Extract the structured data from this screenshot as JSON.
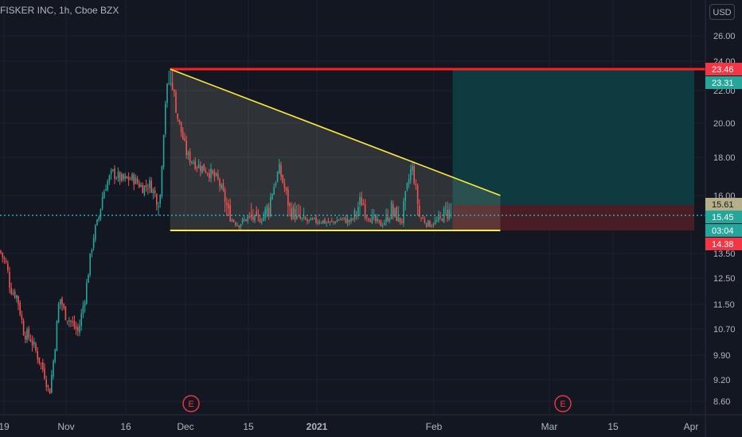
{
  "header": {
    "title": "FISKER INC, 1h, Cboe BZX",
    "currency_label": "USD"
  },
  "colors": {
    "background": "#131722",
    "grid": "#1e2230",
    "axis_text": "#b2b5be",
    "up": "#26a69a",
    "down": "#ef5350",
    "trend": "#ffeb3b",
    "resistance": "#ff1f1f",
    "price_line": "#26c6da",
    "target_zone": "#0d3b3f",
    "stop_zone": "#4a1d24"
  },
  "chart_data": {
    "type": "candlestick",
    "x_axis": {
      "tick_labels": [
        "19",
        "Nov",
        "16",
        "Dec",
        "15",
        "2021",
        "Feb",
        "Mar",
        "15",
        "Apr"
      ],
      "bold_labels": [
        "2021"
      ]
    },
    "y_axis": {
      "tick_labels": [
        "26.00",
        "24.00",
        "22.00",
        "20.00",
        "18.00",
        "16.00",
        "13.50",
        "12.50",
        "11.50",
        "10.70",
        "9.90",
        "9.20",
        "8.60"
      ],
      "price_labels": [
        {
          "text": "23.46",
          "style": "resistance"
        },
        {
          "text": "23.31",
          "style": "target"
        },
        {
          "text": "15.61",
          "style": "neutral"
        },
        {
          "text": "15.45",
          "style": "current"
        },
        {
          "text": "03:04",
          "style": "countdown"
        },
        {
          "text": "14.38",
          "style": "stop"
        }
      ]
    },
    "events": [
      "E",
      "E"
    ],
    "price_series": [
      [
        0.0,
        13.6
      ],
      [
        0.02,
        13.0
      ],
      [
        0.03,
        12.1
      ],
      [
        0.05,
        11.8
      ],
      [
        0.07,
        10.6
      ],
      [
        0.09,
        10.4
      ],
      [
        0.11,
        9.9
      ],
      [
        0.13,
        9.4
      ],
      [
        0.145,
        8.8
      ],
      [
        0.16,
        10.0
      ],
      [
        0.175,
        11.8
      ],
      [
        0.19,
        11.2
      ],
      [
        0.21,
        10.9
      ],
      [
        0.23,
        10.6
      ],
      [
        0.25,
        11.8
      ],
      [
        0.27,
        13.8
      ],
      [
        0.29,
        15.3
      ],
      [
        0.31,
        16.5
      ],
      [
        0.33,
        17.2
      ],
      [
        0.36,
        16.8
      ],
      [
        0.39,
        16.9
      ],
      [
        0.42,
        16.4
      ],
      [
        0.44,
        16.6
      ],
      [
        0.46,
        15.9
      ],
      [
        0.47,
        15.8
      ],
      [
        0.49,
        22.7
      ],
      [
        0.5,
        23.4
      ],
      [
        0.52,
        20.5
      ],
      [
        0.55,
        18.1
      ],
      [
        0.58,
        17.6
      ],
      [
        0.61,
        17.3
      ],
      [
        0.64,
        16.8
      ],
      [
        0.67,
        15.4
      ],
      [
        0.7,
        14.8
      ],
      [
        0.73,
        15.3
      ],
      [
        0.76,
        15.1
      ],
      [
        0.79,
        15.6
      ],
      [
        0.82,
        17.4
      ],
      [
        0.85,
        15.5
      ],
      [
        0.88,
        15.2
      ],
      [
        0.91,
        15.0
      ],
      [
        0.94,
        15.1
      ],
      [
        0.97,
        14.9
      ],
      [
        1.0,
        15.2
      ],
      [
        1.03,
        15.0
      ],
      [
        1.06,
        15.8
      ],
      [
        1.09,
        15.2
      ],
      [
        1.12,
        14.8
      ],
      [
        1.15,
        15.5
      ],
      [
        1.18,
        15.0
      ],
      [
        1.21,
        17.6
      ],
      [
        1.23,
        15.4
      ],
      [
        1.26,
        14.8
      ],
      [
        1.29,
        15.1
      ],
      [
        1.31,
        15.45
      ]
    ],
    "trend_lines": [
      {
        "name": "descending",
        "from": [
          0.5,
          23.46
        ],
        "to": [
          1.47,
          16.0
        ]
      },
      {
        "name": "support",
        "from": [
          0.5,
          14.38
        ],
        "to": [
          1.47,
          14.38
        ]
      }
    ],
    "horizontal_lines": [
      {
        "name": "resistance",
        "value": 23.46
      },
      {
        "name": "current",
        "value": 15.45
      }
    ],
    "zones": [
      {
        "name": "target",
        "from_x": 1.33,
        "to_x": 2.04,
        "from_y": 15.61,
        "to_y": 23.46
      },
      {
        "name": "stop",
        "from_x": 1.33,
        "to_x": 2.04,
        "from_y": 14.38,
        "to_y": 15.61
      }
    ]
  }
}
